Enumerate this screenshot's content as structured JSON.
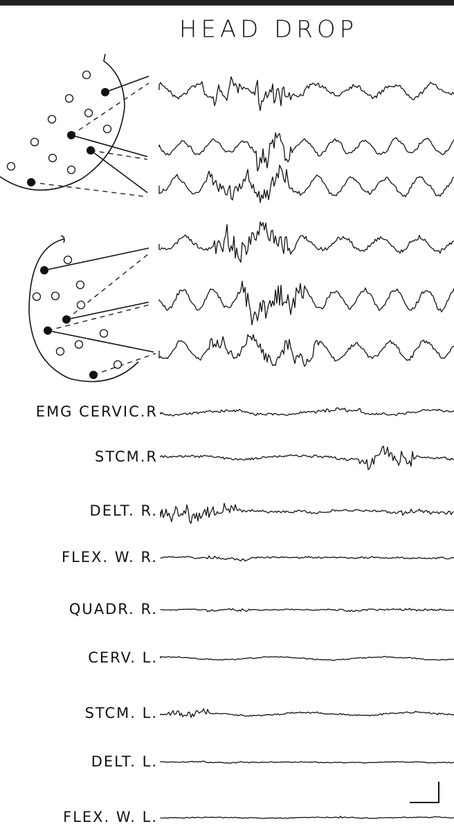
{
  "title": "HEAD DROP",
  "channels": [
    "EMG CERVIC.R",
    "STCM.R",
    "DELT. R.",
    "FLEX. W. R.",
    "QUADR. R.",
    "CERV. L.",
    "STCM. L.",
    "DELT. L.",
    "FLEX. W. L."
  ]
}
